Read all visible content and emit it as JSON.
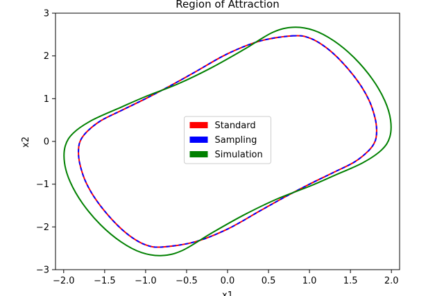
{
  "chart_data": {
    "type": "line",
    "title": "Region of Attraction",
    "xlabel": "x1",
    "ylabel": "x2",
    "xlim": [
      -2.1,
      2.1
    ],
    "ylim": [
      -3,
      3
    ],
    "xticks": [
      -2.0,
      -1.5,
      -1.0,
      -0.5,
      0.0,
      0.5,
      1.0,
      1.5,
      2.0
    ],
    "xtick_labels": [
      "−2.0",
      "−1.5",
      "−1.0",
      "−0.5",
      "0.0",
      "0.5",
      "1.0",
      "1.5",
      "2.0"
    ],
    "yticks": [
      -3,
      -2,
      -1,
      0,
      1,
      2,
      3
    ],
    "ytick_labels": [
      "−3",
      "−2",
      "−1",
      "0",
      "1",
      "2",
      "3"
    ],
    "grid": false,
    "legend_position": "center",
    "series": [
      {
        "name": "Standard",
        "color": "#ff0000",
        "style": "solid",
        "closed": true,
        "points": [
          [
            0.8,
            2.47
          ],
          [
            1.0,
            2.42
          ],
          [
            1.2,
            2.2
          ],
          [
            1.4,
            1.85
          ],
          [
            1.6,
            1.38
          ],
          [
            1.73,
            0.95
          ],
          [
            1.8,
            0.55
          ],
          [
            1.82,
            0.25
          ],
          [
            1.8,
            0.0
          ],
          [
            1.72,
            -0.22
          ],
          [
            1.55,
            -0.48
          ],
          [
            1.3,
            -0.72
          ],
          [
            1.0,
            -1.0
          ],
          [
            0.7,
            -1.3
          ],
          [
            0.4,
            -1.62
          ],
          [
            0.0,
            -2.05
          ],
          [
            -0.4,
            -2.35
          ],
          [
            -0.8,
            -2.47
          ],
          [
            -1.0,
            -2.42
          ],
          [
            -1.2,
            -2.2
          ],
          [
            -1.4,
            -1.85
          ],
          [
            -1.6,
            -1.38
          ],
          [
            -1.73,
            -0.95
          ],
          [
            -1.8,
            -0.55
          ],
          [
            -1.82,
            -0.25
          ],
          [
            -1.8,
            0.0
          ],
          [
            -1.72,
            0.22
          ],
          [
            -1.55,
            0.48
          ],
          [
            -1.3,
            0.72
          ],
          [
            -1.0,
            1.0
          ],
          [
            -0.7,
            1.3
          ],
          [
            -0.4,
            1.62
          ],
          [
            0.0,
            2.05
          ],
          [
            0.4,
            2.35
          ]
        ]
      },
      {
        "name": "Sampling",
        "color": "#0000ff",
        "style": "dashed",
        "closed": true,
        "points": [
          [
            0.8,
            2.47
          ],
          [
            1.0,
            2.42
          ],
          [
            1.2,
            2.2
          ],
          [
            1.4,
            1.85
          ],
          [
            1.6,
            1.38
          ],
          [
            1.73,
            0.95
          ],
          [
            1.8,
            0.55
          ],
          [
            1.82,
            0.25
          ],
          [
            1.8,
            0.0
          ],
          [
            1.72,
            -0.22
          ],
          [
            1.55,
            -0.48
          ],
          [
            1.3,
            -0.72
          ],
          [
            1.0,
            -1.0
          ],
          [
            0.7,
            -1.3
          ],
          [
            0.4,
            -1.62
          ],
          [
            0.0,
            -2.05
          ],
          [
            -0.4,
            -2.35
          ],
          [
            -0.8,
            -2.47
          ],
          [
            -1.0,
            -2.42
          ],
          [
            -1.2,
            -2.2
          ],
          [
            -1.4,
            -1.85
          ],
          [
            -1.6,
            -1.38
          ],
          [
            -1.73,
            -0.95
          ],
          [
            -1.8,
            -0.55
          ],
          [
            -1.82,
            -0.25
          ],
          [
            -1.8,
            0.0
          ],
          [
            -1.72,
            0.22
          ],
          [
            -1.55,
            0.48
          ],
          [
            -1.3,
            0.72
          ],
          [
            -1.0,
            1.0
          ],
          [
            -0.7,
            1.3
          ],
          [
            -0.4,
            1.62
          ],
          [
            0.0,
            2.05
          ],
          [
            0.4,
            2.35
          ]
        ]
      },
      {
        "name": "Simulation",
        "color": "#008000",
        "style": "solid",
        "closed": true,
        "points": [
          [
            0.8,
            2.67
          ],
          [
            1.05,
            2.6
          ],
          [
            1.3,
            2.35
          ],
          [
            1.55,
            1.95
          ],
          [
            1.77,
            1.45
          ],
          [
            1.92,
            0.95
          ],
          [
            1.99,
            0.5
          ],
          [
            1.98,
            0.1
          ],
          [
            1.88,
            -0.2
          ],
          [
            1.65,
            -0.5
          ],
          [
            1.3,
            -0.8
          ],
          [
            1.0,
            -1.05
          ],
          [
            0.6,
            -1.35
          ],
          [
            0.2,
            -1.72
          ],
          [
            -0.2,
            -2.15
          ],
          [
            -0.55,
            -2.55
          ],
          [
            -0.8,
            -2.67
          ],
          [
            -1.05,
            -2.6
          ],
          [
            -1.3,
            -2.35
          ],
          [
            -1.55,
            -1.95
          ],
          [
            -1.77,
            -1.45
          ],
          [
            -1.92,
            -0.95
          ],
          [
            -1.99,
            -0.5
          ],
          [
            -1.98,
            -0.1
          ],
          [
            -1.88,
            0.2
          ],
          [
            -1.65,
            0.5
          ],
          [
            -1.3,
            0.8
          ],
          [
            -1.0,
            1.05
          ],
          [
            -0.6,
            1.35
          ],
          [
            -0.2,
            1.72
          ],
          [
            0.2,
            2.15
          ],
          [
            0.55,
            2.55
          ]
        ]
      }
    ]
  }
}
